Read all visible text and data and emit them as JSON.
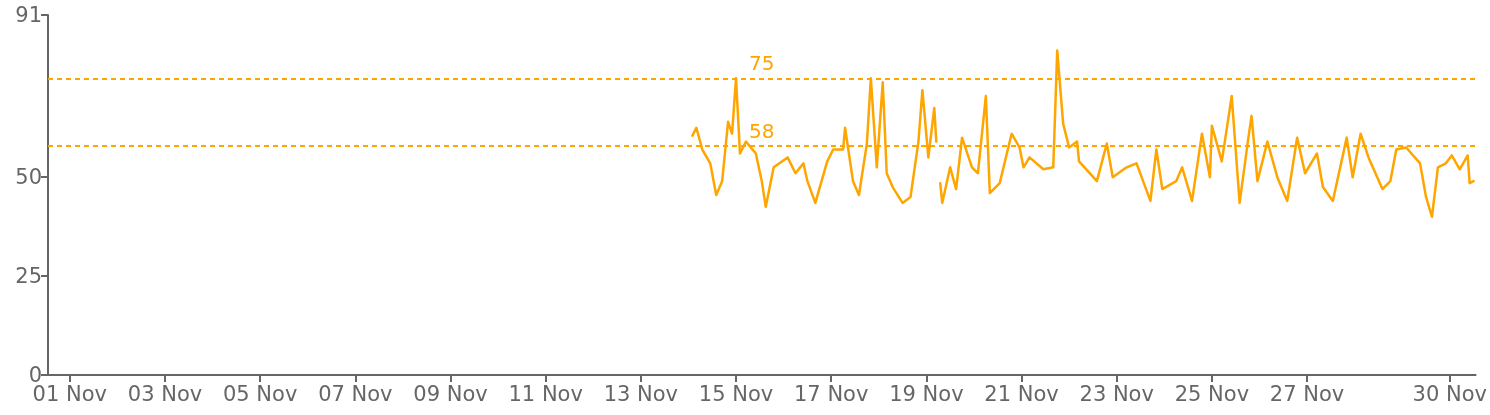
{
  "chart_data": {
    "type": "line",
    "marker": "none",
    "xlim": [
      "--10-31T13:00",
      "--11-30T13:00"
    ],
    "xticks": [
      {
        "value": "--11-01",
        "label": "01 Nov"
      },
      {
        "value": "--11-03",
        "label": "03 Nov"
      },
      {
        "value": "--11-05",
        "label": "05 Nov"
      },
      {
        "value": "--11-07",
        "label": "07 Nov"
      },
      {
        "value": "--11-09",
        "label": "09 Nov"
      },
      {
        "value": "--11-11",
        "label": "11 Nov"
      },
      {
        "value": "--11-13",
        "label": "13 Nov"
      },
      {
        "value": "--11-15",
        "label": "15 Nov"
      },
      {
        "value": "--11-17",
        "label": "17 Nov"
      },
      {
        "value": "--11-19",
        "label": "19 Nov"
      },
      {
        "value": "--11-21",
        "label": "21 Nov"
      },
      {
        "value": "--11-23",
        "label": "23 Nov"
      },
      {
        "value": "--11-25",
        "label": "25 Nov"
      },
      {
        "value": "--11-27",
        "label": "27 Nov"
      },
      {
        "value": "--11-30",
        "label": "30 Nov"
      }
    ],
    "ylim": [
      0,
      91
    ],
    "yticks": [
      0,
      25,
      50,
      91
    ],
    "ref_lines": [
      {
        "axis": "y",
        "value": 75,
        "label": "75",
        "color": "#ffa500",
        "line_style": "dashed"
      },
      {
        "axis": "y",
        "value": 58,
        "label": "58",
        "color": "#ffa500",
        "line_style": "dashed"
      }
    ],
    "x": [
      "--11-14T02:00",
      "--11-14T04:00",
      "--11-14T07:00",
      "--11-14T11:00",
      "--11-14T14:00",
      "--11-14T17:00",
      "--11-14T20:00",
      "--11-14T22:00",
      "--11-15T00:00",
      "--11-15T02:00",
      "--11-15T05:00",
      "--11-15T10:00",
      "--11-15T13:00",
      "--11-15T15:00",
      "--11-15T19:00",
      "--11-16T02:00",
      "--11-16T06:00",
      "--11-16T10:00",
      "--11-16T12:00",
      "--11-16T16:00",
      "--11-16T22:00",
      "--11-17T01:00",
      "--11-17T06:00",
      "--11-17T07:00",
      "--11-17T11:00",
      "--11-17T14:00",
      "--11-17T18:00",
      "--11-17T20:00",
      "--11-17T23:00",
      "--11-18T02:00",
      "--11-18T04:00",
      "--11-18T07:00",
      "--11-18T12:00",
      "--11-18T16:00",
      "--11-18T20:00",
      "--11-18T22:00",
      "--11-19T01:00",
      "--11-19T04:00",
      "--11-19T05:00",
      "--11-19T06:00",
      "--11-19T07:00",
      "--11-19T08:00",
      "--11-19T12:00",
      "--11-19T15:00",
      "--11-19T18:00",
      "--11-19T23:00",
      "--11-20T02:00",
      "--11-20T06:00",
      "--11-20T08:00",
      "--11-20T13:00",
      "--11-20T19:00",
      "--11-20T23:00",
      "--11-21T01:00",
      "--11-21T04:00",
      "--11-21T11:00",
      "--11-21T16:00",
      "--11-21T18:00",
      "--11-21T21:00",
      "--11-22T00:00",
      "--11-22T04:00",
      "--11-22T05:00",
      "--11-22T14:00",
      "--11-22T19:00",
      "--11-22T22:00",
      "--11-23T05:00",
      "--11-23T10:00",
      "--11-23T17:00",
      "--11-23T20:00",
      "--11-23T23:00",
      "--11-24T06:00",
      "--11-24T09:00",
      "--11-24T14:00",
      "--11-24T19:00",
      "--11-24T23:00",
      "--11-25T00:00",
      "--11-25T05:00",
      "--11-25T10:00",
      "--11-25T14:00",
      "--11-25T18:00",
      "--11-25T20:00",
      "--11-25T23:00",
      "--11-26T04:00",
      "--11-26T09:00",
      "--11-26T14:00",
      "--11-26T19:00",
      "--11-26T23:00",
      "--11-27T05:00",
      "--11-27T08:00",
      "--11-27T13:00",
      "--11-27T20:00",
      "--11-27T23:00",
      "--11-28T03:00",
      "--11-28T07:00",
      "--11-28T14:00",
      "--11-28T18:00",
      "--11-28T21:00",
      "--11-29T02:00",
      "--11-29T09:00",
      "--11-29T12:00",
      "--11-29T15:00",
      "--11-29T18:00",
      "--11-29T22:00",
      "--11-30T01:00",
      "--11-30T05:00",
      "--11-30T09:00",
      "--11-30T10:00",
      "--11-30T12:00"
    ],
    "series": [
      {
        "color": "#ffa500",
        "values": [
          60.5,
          62.5,
          57,
          53.5,
          45.5,
          49,
          64,
          61,
          75,
          56,
          59,
          56,
          49,
          42.5,
          52.5,
          55,
          51,
          53.5,
          49,
          43.5,
          54,
          57,
          57,
          62.5,
          49,
          45.5,
          58.5,
          75,
          52.5,
          74,
          51,
          47.5,
          43.5,
          45,
          59,
          72,
          55,
          67.5,
          59,
          null,
          48.5,
          43.5,
          52.5,
          47,
          60,
          52.5,
          51,
          70.5,
          46,
          48.5,
          61,
          57.5,
          52.5,
          55,
          52,
          52.5,
          82,
          63.5,
          57.5,
          59,
          54,
          49,
          58.5,
          50,
          52.5,
          53.5,
          44,
          57,
          47,
          49,
          52.5,
          44,
          61,
          50,
          63,
          54,
          70.5,
          43.5,
          58.5,
          65.5,
          49,
          59,
          50,
          44,
          60,
          51,
          56,
          47.5,
          44,
          60,
          50,
          61,
          55,
          47,
          49,
          57,
          57.5,
          53.5,
          45,
          40,
          52.5,
          53.5,
          55.5,
          52,
          55.5,
          48.5,
          49
        ]
      }
    ]
  }
}
